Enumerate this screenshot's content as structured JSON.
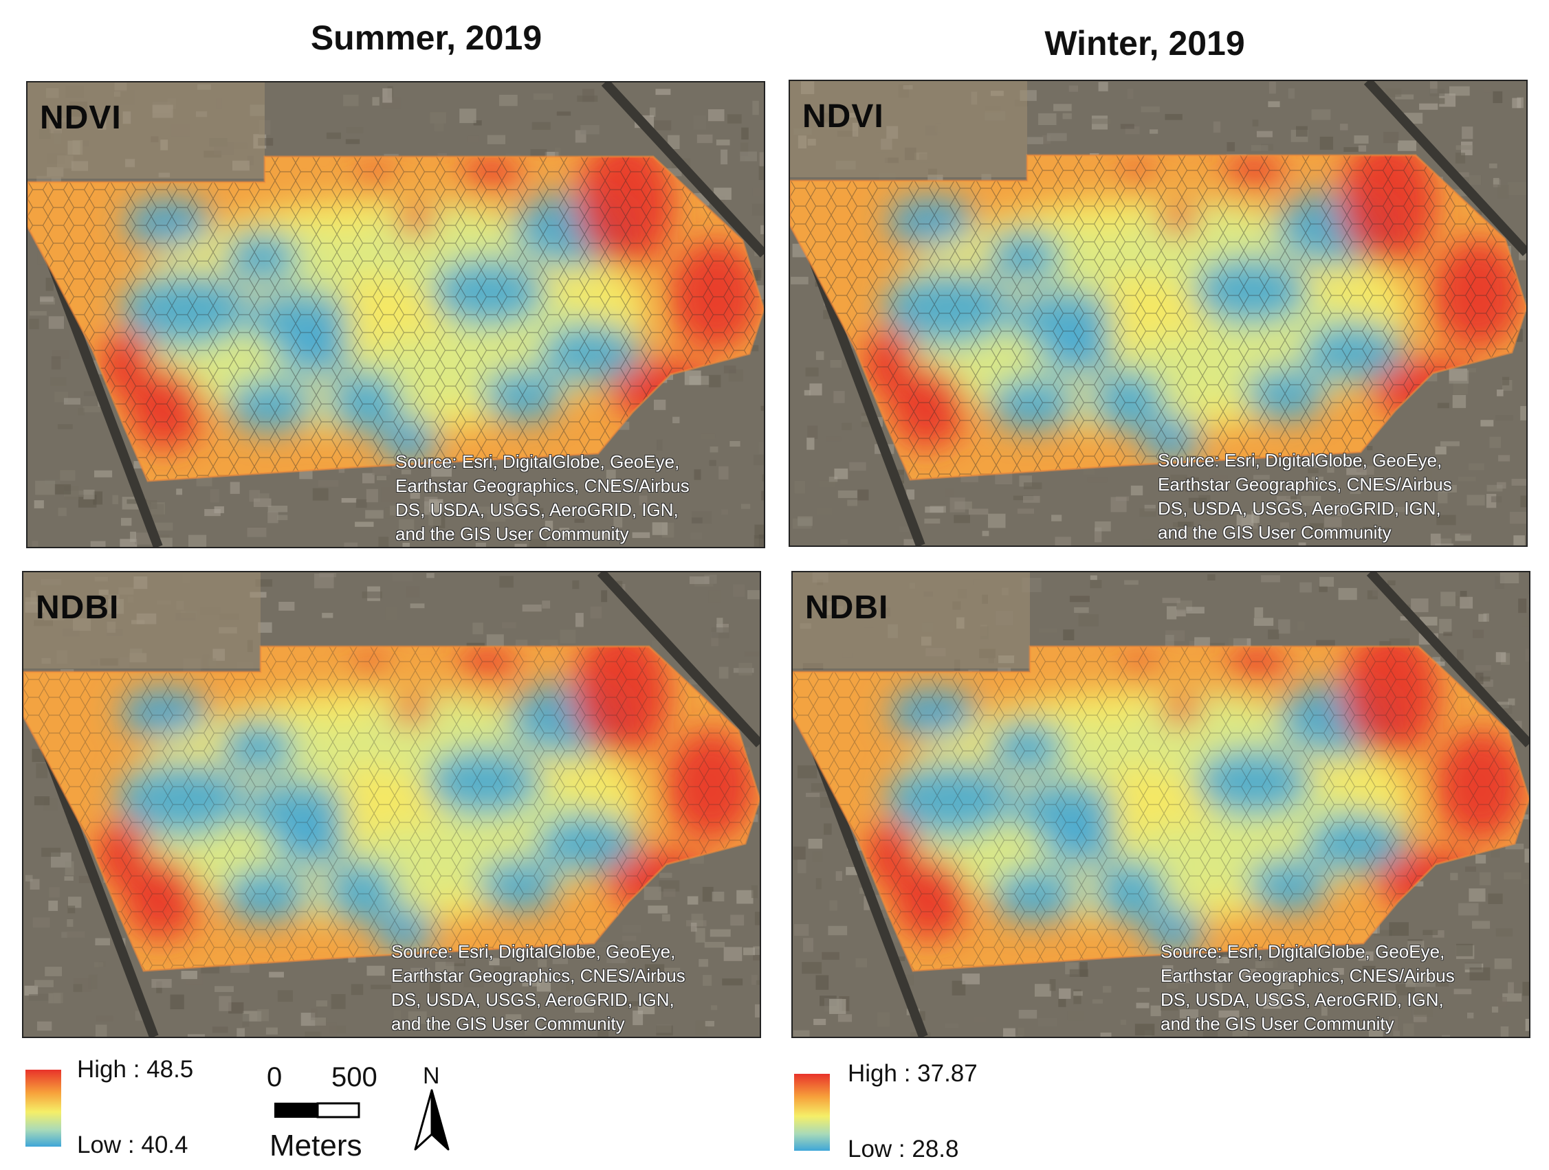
{
  "columns": {
    "summer": {
      "title": "Summer, 2019"
    },
    "winter": {
      "title": "Winter, 2019"
    }
  },
  "panels": [
    {
      "id": "summer-ndvi",
      "label": "NDVI"
    },
    {
      "id": "winter-ndvi",
      "label": "NDVI"
    },
    {
      "id": "summer-ndbi",
      "label": "NDBI"
    },
    {
      "id": "winter-ndbi",
      "label": "NDBI"
    }
  ],
  "credit_lines": [
    "Source: Esri, DigitalGlobe, GeoEye,",
    "Earthstar Geographics, CNES/Airbus",
    "DS, USDA, USGS, AeroGRID, IGN,",
    "and the GIS User Community"
  ],
  "legends": {
    "summer": {
      "high": "High : 48.5",
      "low": "Low : 40.4"
    },
    "winter": {
      "high": "High : 37.87",
      "low": "Low : 28.8"
    }
  },
  "scale_bar": {
    "start": "0",
    "end": "500",
    "unit": "Meters"
  },
  "north_arrow": {
    "label": "N"
  },
  "colors": {
    "high": "#e8332a",
    "mid": "#f5ef68",
    "low": "#3fa6d8"
  }
}
